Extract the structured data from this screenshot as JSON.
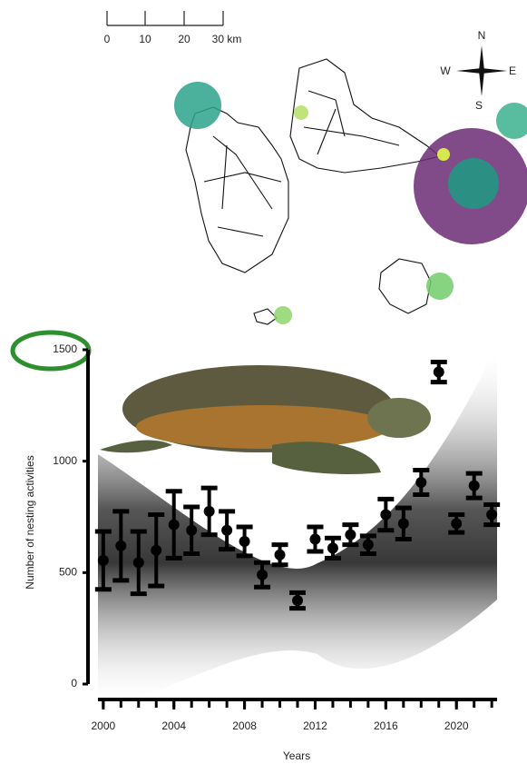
{
  "map": {
    "scale_labels": [
      "0",
      "10",
      "20",
      "30 km"
    ],
    "compass": {
      "north": "N",
      "south": "S",
      "east": "E",
      "west": "W"
    }
  },
  "chart_data": {
    "type": "errorbar",
    "color": "#000000",
    "y_label": "Number of nesting activities",
    "x_label": "Years",
    "x": [
      2000,
      2001,
      2002,
      2003,
      2004,
      2005,
      2006,
      2007,
      2008,
      2009,
      2010,
      2011,
      2012,
      2013,
      2014,
      2015,
      2016,
      2017,
      2018,
      2019,
      2020,
      2021,
      2022
    ],
    "values": [
      555,
      620,
      545,
      600,
      715,
      690,
      775,
      690,
      640,
      490,
      580,
      375,
      650,
      610,
      670,
      625,
      760,
      720,
      905,
      1400,
      720,
      890,
      760
    ],
    "errors": [
      130,
      155,
      140,
      160,
      150,
      105,
      105,
      85,
      65,
      55,
      45,
      35,
      55,
      45,
      45,
      40,
      70,
      70,
      55,
      45,
      40,
      55,
      45
    ],
    "xlim": [
      1999.7,
      2022.3
    ],
    "ylim": [
      0,
      1500
    ],
    "xticks": [
      2000,
      2004,
      2008,
      2012,
      2016,
      2020
    ],
    "yticks": [
      0,
      500,
      1000,
      1500
    ]
  }
}
